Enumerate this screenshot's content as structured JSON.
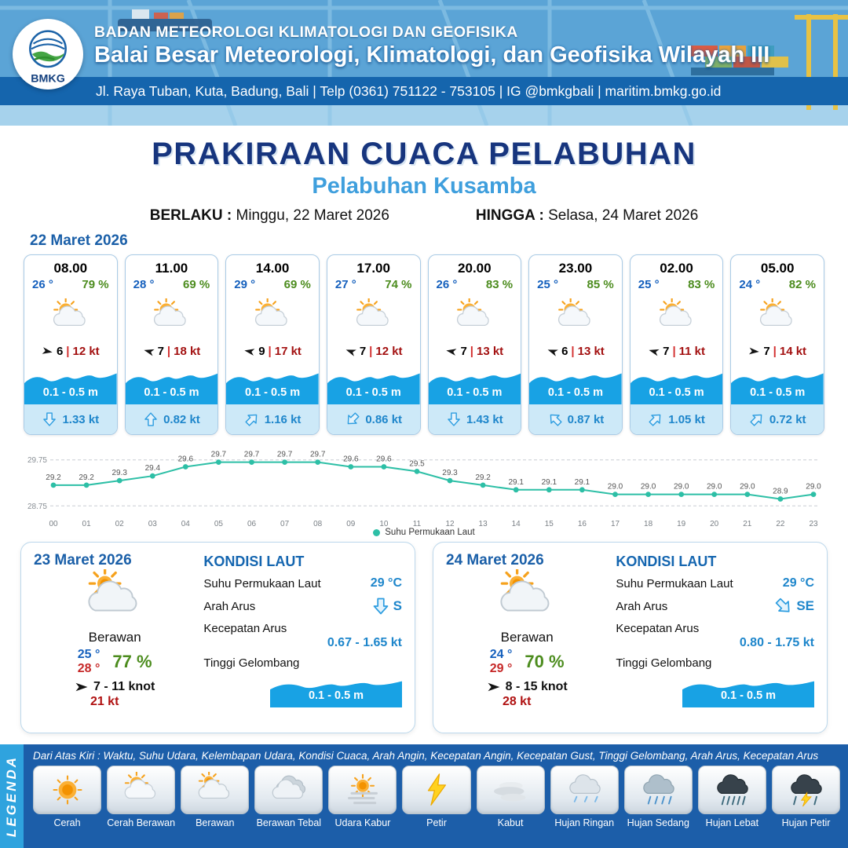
{
  "header": {
    "logo": "BMKG",
    "org": "BADAN METEOROLOGI KLIMATOLOGI DAN GEOFISIKA",
    "office": "Balai Besar Meteorologi, Klimatologi, dan Geofisika Wilayah III",
    "address": "Jl. Raya Tuban, Kuta, Badung, Bali | Telp (0361) 751122 - 753105 | IG @bmkgbali | maritim.bmkg.go.id"
  },
  "title": {
    "main": "PRAKIRAAN CUACA PELABUHAN",
    "port": "Pelabuhan Kusamba",
    "berlaku_label": "BERLAKU :",
    "berlaku_value": "Minggu, 22 Maret 2026",
    "hingga_label": "HINGGA :",
    "hingga_value": "Selasa, 24 Maret 2026"
  },
  "forecast": {
    "date": "22 Maret 2026",
    "cards": [
      {
        "time": "08.00",
        "temp": "26 °",
        "humidity": "79 %",
        "icon": "sun-cloud",
        "wind_dir_deg": 10,
        "wind_speed": "6",
        "gust": "12 kt",
        "wave": "0.1 - 0.5 m",
        "current_dir_deg": 180,
        "current": "1.33 kt"
      },
      {
        "time": "11.00",
        "temp": "28 °",
        "humidity": "69 %",
        "icon": "sun-cloud",
        "wind_dir_deg": 195,
        "wind_speed": "7",
        "gust": "18 kt",
        "wave": "0.1 - 0.5 m",
        "current_dir_deg": 0,
        "current": "0.82 kt"
      },
      {
        "time": "14.00",
        "temp": "29 °",
        "humidity": "69 %",
        "icon": "sun-cloud",
        "wind_dir_deg": 190,
        "wind_speed": "9",
        "gust": "17 kt",
        "wave": "0.1 - 0.5 m",
        "current_dir_deg": 45,
        "current": "1.16 kt"
      },
      {
        "time": "17.00",
        "temp": "27 °",
        "humidity": "74 %",
        "icon": "sun-cloud",
        "wind_dir_deg": 200,
        "wind_speed": "7",
        "gust": "12 kt",
        "wave": "0.1 - 0.5 m",
        "current_dir_deg": 225,
        "current": "0.86 kt"
      },
      {
        "time": "20.00",
        "temp": "26 °",
        "humidity": "83 %",
        "icon": "sun-cloud",
        "wind_dir_deg": 190,
        "wind_speed": "7",
        "gust": "13 kt",
        "wave": "0.1 - 0.5 m",
        "current_dir_deg": 180,
        "current": "1.43 kt"
      },
      {
        "time": "23.00",
        "temp": "25 °",
        "humidity": "85 %",
        "icon": "sun-cloud",
        "wind_dir_deg": 200,
        "wind_speed": "6",
        "gust": "13 kt",
        "wave": "0.1 - 0.5 m",
        "current_dir_deg": 315,
        "current": "0.87 kt"
      },
      {
        "time": "02.00",
        "temp": "25 °",
        "humidity": "83 %",
        "icon": "sun-cloud",
        "wind_dir_deg": 195,
        "wind_speed": "7",
        "gust": "11 kt",
        "wave": "0.1 - 0.5 m",
        "current_dir_deg": 45,
        "current": "1.05 kt"
      },
      {
        "time": "05.00",
        "temp": "24 °",
        "humidity": "82 %",
        "icon": "sun-cloud",
        "wind_dir_deg": 5,
        "wind_speed": "7",
        "gust": "14 kt",
        "wave": "0.1 - 0.5 m",
        "current_dir_deg": 45,
        "current": "0.72 kt"
      }
    ]
  },
  "chart_data": {
    "type": "line",
    "series_name": "Suhu Permukaan Laut",
    "x": [
      "00",
      "01",
      "02",
      "03",
      "04",
      "05",
      "06",
      "07",
      "08",
      "09",
      "10",
      "11",
      "12",
      "13",
      "14",
      "15",
      "16",
      "17",
      "18",
      "19",
      "20",
      "21",
      "22",
      "23"
    ],
    "values": [
      29.2,
      29.2,
      29.3,
      29.4,
      29.6,
      29.7,
      29.7,
      29.7,
      29.7,
      29.6,
      29.6,
      29.5,
      29.3,
      29.2,
      29.1,
      29.1,
      29.1,
      29.0,
      29.0,
      29.0,
      29.0,
      29.0,
      28.9,
      29.0
    ],
    "ylim": [
      28.55,
      29.95
    ],
    "yticks": [
      29.75,
      28.75
    ],
    "color": "#2dbfa6",
    "grid": "dashed-horizontal",
    "legend_position": "bottom-center"
  },
  "labels": {
    "kondisi_laut": "KONDISI LAUT",
    "sst": "Suhu Permukaan Laut",
    "arah_arus": "Arah Arus",
    "kecepatan_arus": "Kecepatan Arus",
    "tinggi_gelombang": "Tinggi Gelombang"
  },
  "daily": [
    {
      "date": "23 Maret 2026",
      "icon": "cloud",
      "condition": "Berawan",
      "temp_min": "25 °",
      "temp_max": "28 °",
      "humidity": "77 %",
      "wind_dir_deg": 0,
      "wind": "7 - 11 knot",
      "gust": "21 kt",
      "sea": {
        "sst": "29 °C",
        "dir": "S",
        "dir_deg": 180,
        "current": "0.67 - 1.65 kt",
        "wave": "0.1 - 0.5 m"
      }
    },
    {
      "date": "24 Maret 2026",
      "icon": "cloud",
      "condition": "Berawan",
      "temp_min": "24 °",
      "temp_max": "29 °",
      "humidity": "70 %",
      "wind_dir_deg": 0,
      "wind": "8 - 15 knot",
      "gust": "28 kt",
      "sea": {
        "sst": "29 °C",
        "dir": "SE",
        "dir_deg": 135,
        "current": "0.80 - 1.75 kt",
        "wave": "0.1 - 0.5 m"
      }
    }
  ],
  "legend": {
    "title": "LEGENDA",
    "note": "Dari Atas Kiri : Waktu, Suhu Udara, Kelembapan Udara, Kondisi Cuaca, Arah Angin, Kecepatan Angin, Kecepatan Gust, Tinggi Gelombang, Arah Arus, Kecepatan Arus",
    "items": [
      {
        "label": "Cerah",
        "icon": "sun"
      },
      {
        "label": "Cerah Berawan",
        "icon": "sun-cloud"
      },
      {
        "label": "Berawan",
        "icon": "cloud"
      },
      {
        "label": "Berawan Tebal",
        "icon": "cloud-thick"
      },
      {
        "label": "Udara Kabur",
        "icon": "sun-haze"
      },
      {
        "label": "Petir",
        "icon": "lightning"
      },
      {
        "label": "Kabut",
        "icon": "fog"
      },
      {
        "label": "Hujan Ringan",
        "icon": "rain-light"
      },
      {
        "label": "Hujan Sedang",
        "icon": "rain-medium"
      },
      {
        "label": "Hujan Lebat",
        "icon": "rain-heavy"
      },
      {
        "label": "Hujan Petir",
        "icon": "storm"
      }
    ]
  },
  "colors": {
    "header_blue": "#1565ad",
    "title_blue": "#17357e",
    "port_blue": "#3f9fdd",
    "wave_blue": "#18a2e4",
    "current_blue": "#1e86cb",
    "humidity_green": "#4c8c1e",
    "gust_red": "#a31111",
    "sst_teal": "#2dbfa6",
    "legend_bg": "#1c5ea9",
    "legend_ribbon": "#2fa3de"
  }
}
